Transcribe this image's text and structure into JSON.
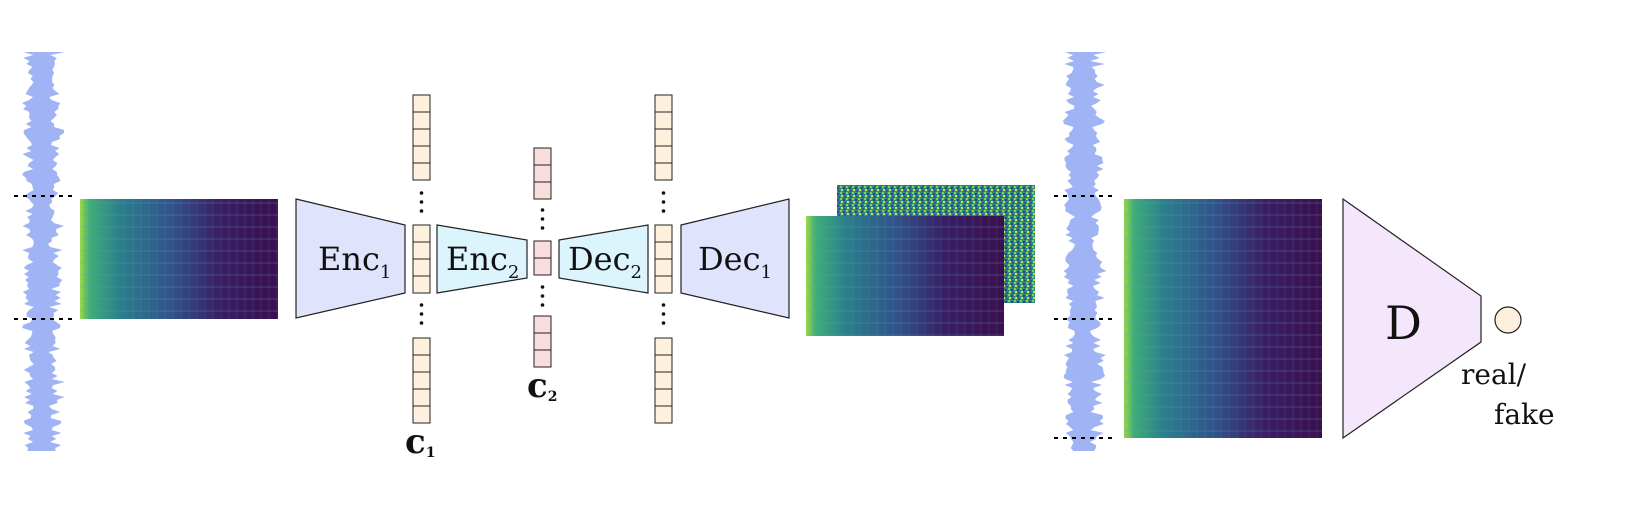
{
  "colors": {
    "waveform": "#9fb3f5",
    "enc1_fill": "#dfe3fb",
    "enc2_fill": "#dcf4fb",
    "dec2_fill": "#dcf4fb",
    "dec1_fill": "#dfe3fb",
    "disc_fill": "#f4e6fb",
    "code1_fill": "#fdf1de",
    "code2_fill": "#f9dcdc",
    "spec_dark": "#3b0f4f",
    "spec_mid": "#2f6f8e",
    "spec_bright": "#7fd34e",
    "noise": "#2e8b82"
  },
  "blocks": {
    "enc1": {
      "name": "Enc",
      "sub": "1"
    },
    "enc2": {
      "name": "Enc",
      "sub": "2"
    },
    "dec2": {
      "name": "Dec",
      "sub": "2"
    },
    "dec1": {
      "name": "Dec",
      "sub": "1"
    },
    "disc": {
      "name": "D"
    }
  },
  "codes": {
    "c1": {
      "name": "c",
      "sub": "1"
    },
    "c2": {
      "name": "c",
      "sub": "2"
    }
  },
  "output": {
    "line1": "real/",
    "line2": "fake"
  }
}
